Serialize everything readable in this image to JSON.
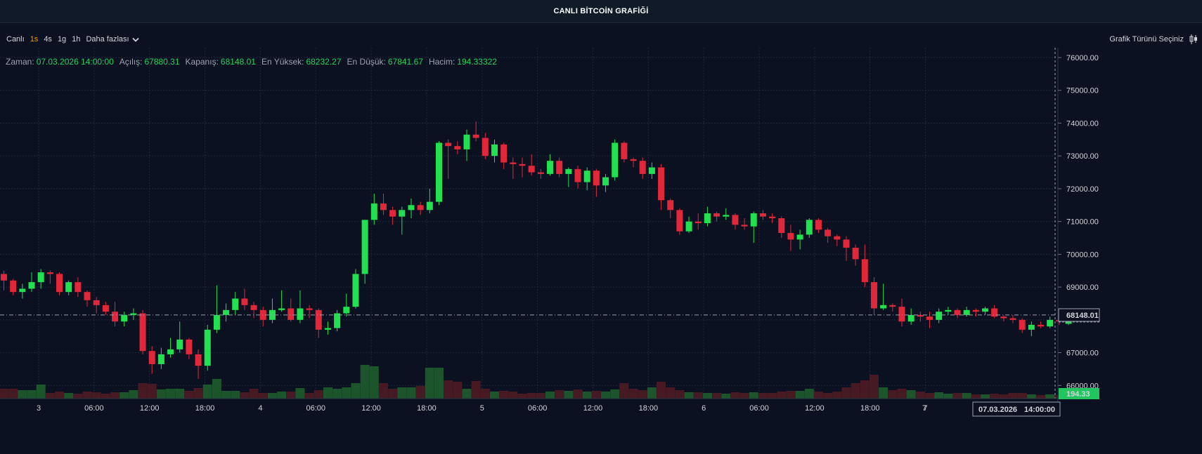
{
  "window": {
    "title": "CANLI BİTCOİN GRAFİĞİ"
  },
  "toolbar": {
    "live_label": "Canlı",
    "timeframes": [
      "1s",
      "4s",
      "1g",
      "1h"
    ],
    "active_timeframe": "1s",
    "more_label": "Daha fazlası",
    "chart_type_label": "Grafik Türünü Seçiniz"
  },
  "ohlc": {
    "time_label": "Zaman:",
    "time_value": "07.03.2026 14:00:00",
    "open_label": "Açılış:",
    "open_value": "67880.31",
    "close_label": "Kapanış:",
    "close_value": "68148.01",
    "high_label": "En Yüksek:",
    "high_value": "68232.27",
    "low_label": "En Düşük:",
    "low_value": "67841.67",
    "volume_label": "Hacim:",
    "volume_value": "194.33322"
  },
  "price_axis": {
    "ticks": [
      "76000.00",
      "75000.00",
      "74000.00",
      "73000.00",
      "72000.00",
      "71000.00",
      "70000.00",
      "69000.00",
      "67000.00",
      "66000.00"
    ],
    "current_price_label": "68148.01",
    "volume_label": "194.33"
  },
  "time_axis": {
    "labels": [
      "3",
      "06:00",
      "12:00",
      "18:00",
      "4",
      "06:00",
      "12:00",
      "18:00",
      "5",
      "06:00",
      "12:00",
      "18:00",
      "6",
      "06:00",
      "12:00",
      "18:00",
      "7"
    ],
    "crosshair_date": "07.03.2026",
    "crosshair_time": "14:00:00"
  },
  "colors": {
    "up": "#22e04f",
    "down": "#e0283a",
    "background": "#0b1120",
    "grid": "#1c2a3d",
    "accent": "#f59e0b",
    "text": "#d1d5db"
  },
  "chart_data": {
    "type": "candlestick",
    "ylim": [
      65600,
      76300
    ],
    "candles": [
      {
        "o": 69400,
        "c": 69200,
        "h": 69500,
        "l": 68900,
        "v": 14
      },
      {
        "o": 69200,
        "c": 68850,
        "h": 69250,
        "l": 68750,
        "v": 14
      },
      {
        "o": 68850,
        "c": 68950,
        "h": 69100,
        "l": 68650,
        "v": 12
      },
      {
        "o": 68950,
        "c": 69150,
        "h": 69450,
        "l": 68850,
        "v": 12
      },
      {
        "o": 69150,
        "c": 69450,
        "h": 69550,
        "l": 68950,
        "v": 20
      },
      {
        "o": 69450,
        "c": 69400,
        "h": 69500,
        "l": 69100,
        "v": 8
      },
      {
        "o": 69400,
        "c": 68850,
        "h": 69450,
        "l": 68750,
        "v": 10
      },
      {
        "o": 68850,
        "c": 69150,
        "h": 69200,
        "l": 68750,
        "v": 8
      },
      {
        "o": 69150,
        "c": 68850,
        "h": 69300,
        "l": 68700,
        "v": 7
      },
      {
        "o": 68850,
        "c": 68600,
        "h": 68900,
        "l": 68400,
        "v": 10
      },
      {
        "o": 68600,
        "c": 68450,
        "h": 68700,
        "l": 68200,
        "v": 9
      },
      {
        "o": 68450,
        "c": 68250,
        "h": 68550,
        "l": 68150,
        "v": 7
      },
      {
        "o": 68250,
        "c": 67950,
        "h": 68550,
        "l": 67800,
        "v": 9
      },
      {
        "o": 67950,
        "c": 68150,
        "h": 68250,
        "l": 67800,
        "v": 9
      },
      {
        "o": 68150,
        "c": 68200,
        "h": 68350,
        "l": 68000,
        "v": 12
      },
      {
        "o": 68200,
        "c": 67050,
        "h": 68300,
        "l": 66950,
        "v": 22
      },
      {
        "o": 67050,
        "c": 66650,
        "h": 67200,
        "l": 66350,
        "v": 21
      },
      {
        "o": 66650,
        "c": 66950,
        "h": 67150,
        "l": 66500,
        "v": 13
      },
      {
        "o": 66950,
        "c": 67100,
        "h": 67450,
        "l": 66850,
        "v": 14
      },
      {
        "o": 67100,
        "c": 67400,
        "h": 67950,
        "l": 67000,
        "v": 14
      },
      {
        "o": 67400,
        "c": 66950,
        "h": 67450,
        "l": 66800,
        "v": 11
      },
      {
        "o": 66950,
        "c": 66600,
        "h": 67100,
        "l": 66200,
        "v": 15
      },
      {
        "o": 66600,
        "c": 67700,
        "h": 67850,
        "l": 66450,
        "v": 20
      },
      {
        "o": 67700,
        "c": 68150,
        "h": 69050,
        "l": 67600,
        "v": 28
      },
      {
        "o": 68150,
        "c": 68300,
        "h": 68500,
        "l": 67950,
        "v": 11
      },
      {
        "o": 68300,
        "c": 68650,
        "h": 68850,
        "l": 68150,
        "v": 11
      },
      {
        "o": 68650,
        "c": 68450,
        "h": 68950,
        "l": 68300,
        "v": 9
      },
      {
        "o": 68450,
        "c": 68300,
        "h": 68550,
        "l": 68050,
        "v": 14
      },
      {
        "o": 68300,
        "c": 68000,
        "h": 68400,
        "l": 67800,
        "v": 8
      },
      {
        "o": 68000,
        "c": 68300,
        "h": 68650,
        "l": 67900,
        "v": 8
      },
      {
        "o": 68300,
        "c": 68350,
        "h": 68900,
        "l": 68250,
        "v": 10
      },
      {
        "o": 68350,
        "c": 68000,
        "h": 68650,
        "l": 67950,
        "v": 10
      },
      {
        "o": 68000,
        "c": 68350,
        "h": 68900,
        "l": 67900,
        "v": 15
      },
      {
        "o": 68350,
        "c": 68300,
        "h": 68450,
        "l": 68050,
        "v": 8
      },
      {
        "o": 68300,
        "c": 67700,
        "h": 68350,
        "l": 67450,
        "v": 12
      },
      {
        "o": 67700,
        "c": 67750,
        "h": 67950,
        "l": 67550,
        "v": 16
      },
      {
        "o": 67750,
        "c": 68200,
        "h": 68300,
        "l": 67650,
        "v": 14
      },
      {
        "o": 68200,
        "c": 68400,
        "h": 68800,
        "l": 68100,
        "v": 16
      },
      {
        "o": 68400,
        "c": 69400,
        "h": 69550,
        "l": 68350,
        "v": 22
      },
      {
        "o": 69400,
        "c": 71050,
        "h": 71050,
        "l": 69100,
        "v": 48
      },
      {
        "o": 71050,
        "c": 71550,
        "h": 71850,
        "l": 70900,
        "v": 46
      },
      {
        "o": 71550,
        "c": 71350,
        "h": 71850,
        "l": 71200,
        "v": 22
      },
      {
        "o": 71350,
        "c": 71150,
        "h": 71450,
        "l": 70900,
        "v": 14
      },
      {
        "o": 71150,
        "c": 71350,
        "h": 71450,
        "l": 70600,
        "v": 16
      },
      {
        "o": 71350,
        "c": 71500,
        "h": 71700,
        "l": 71100,
        "v": 16
      },
      {
        "o": 71500,
        "c": 71350,
        "h": 71600,
        "l": 71200,
        "v": 18
      },
      {
        "o": 71350,
        "c": 71600,
        "h": 72000,
        "l": 71250,
        "v": 44
      },
      {
        "o": 71600,
        "c": 73400,
        "h": 73450,
        "l": 71500,
        "v": 44
      },
      {
        "o": 73400,
        "c": 73300,
        "h": 73500,
        "l": 72300,
        "v": 26
      },
      {
        "o": 73300,
        "c": 73200,
        "h": 73450,
        "l": 73050,
        "v": 24
      },
      {
        "o": 73200,
        "c": 73650,
        "h": 73800,
        "l": 72850,
        "v": 14
      },
      {
        "o": 73650,
        "c": 73550,
        "h": 74050,
        "l": 73450,
        "v": 25
      },
      {
        "o": 73550,
        "c": 73000,
        "h": 73700,
        "l": 72900,
        "v": 14
      },
      {
        "o": 73000,
        "c": 73350,
        "h": 73500,
        "l": 72800,
        "v": 10
      },
      {
        "o": 73350,
        "c": 72800,
        "h": 73400,
        "l": 72600,
        "v": 11
      },
      {
        "o": 72800,
        "c": 72750,
        "h": 72950,
        "l": 72300,
        "v": 10
      },
      {
        "o": 72750,
        "c": 72700,
        "h": 72950,
        "l": 72350,
        "v": 7
      },
      {
        "o": 72700,
        "c": 72500,
        "h": 73050,
        "l": 72400,
        "v": 8
      },
      {
        "o": 72500,
        "c": 72450,
        "h": 72600,
        "l": 72300,
        "v": 8
      },
      {
        "o": 72450,
        "c": 72850,
        "h": 73050,
        "l": 72400,
        "v": 10
      },
      {
        "o": 72850,
        "c": 72450,
        "h": 72950,
        "l": 72350,
        "v": 12
      },
      {
        "o": 72450,
        "c": 72600,
        "h": 72650,
        "l": 72050,
        "v": 11
      },
      {
        "o": 72600,
        "c": 72200,
        "h": 72700,
        "l": 72000,
        "v": 13
      },
      {
        "o": 72200,
        "c": 72550,
        "h": 72650,
        "l": 71950,
        "v": 10
      },
      {
        "o": 72550,
        "c": 72100,
        "h": 72600,
        "l": 71750,
        "v": 11
      },
      {
        "o": 72100,
        "c": 72350,
        "h": 72450,
        "l": 71900,
        "v": 10
      },
      {
        "o": 72350,
        "c": 73400,
        "h": 73500,
        "l": 72250,
        "v": 13
      },
      {
        "o": 73400,
        "c": 72900,
        "h": 73450,
        "l": 72800,
        "v": 22
      },
      {
        "o": 72900,
        "c": 72850,
        "h": 72950,
        "l": 72650,
        "v": 14
      },
      {
        "o": 72850,
        "c": 72450,
        "h": 72950,
        "l": 72300,
        "v": 12
      },
      {
        "o": 72450,
        "c": 72650,
        "h": 72800,
        "l": 72300,
        "v": 16
      },
      {
        "o": 72650,
        "c": 71650,
        "h": 72750,
        "l": 71350,
        "v": 24
      },
      {
        "o": 71650,
        "c": 71350,
        "h": 71700,
        "l": 71100,
        "v": 16
      },
      {
        "o": 71350,
        "c": 70700,
        "h": 71400,
        "l": 70600,
        "v": 12
      },
      {
        "o": 70700,
        "c": 71000,
        "h": 71150,
        "l": 70650,
        "v": 9
      },
      {
        "o": 71000,
        "c": 70950,
        "h": 71250,
        "l": 70750,
        "v": 9
      },
      {
        "o": 70950,
        "c": 71250,
        "h": 71450,
        "l": 70850,
        "v": 8
      },
      {
        "o": 71250,
        "c": 71150,
        "h": 71300,
        "l": 71000,
        "v": 8
      },
      {
        "o": 71150,
        "c": 71200,
        "h": 71400,
        "l": 71050,
        "v": 7
      },
      {
        "o": 71200,
        "c": 70900,
        "h": 71250,
        "l": 70750,
        "v": 9
      },
      {
        "o": 70900,
        "c": 70850,
        "h": 71100,
        "l": 70750,
        "v": 8
      },
      {
        "o": 70850,
        "c": 71250,
        "h": 71300,
        "l": 70350,
        "v": 9
      },
      {
        "o": 71250,
        "c": 71150,
        "h": 71350,
        "l": 71050,
        "v": 8
      },
      {
        "o": 71150,
        "c": 71100,
        "h": 71250,
        "l": 70950,
        "v": 8
      },
      {
        "o": 71100,
        "c": 70650,
        "h": 71150,
        "l": 70500,
        "v": 10
      },
      {
        "o": 70650,
        "c": 70450,
        "h": 70900,
        "l": 70100,
        "v": 11
      },
      {
        "o": 70450,
        "c": 70600,
        "h": 70750,
        "l": 70150,
        "v": 11
      },
      {
        "o": 70600,
        "c": 71050,
        "h": 71100,
        "l": 70500,
        "v": 14
      },
      {
        "o": 71050,
        "c": 70750,
        "h": 71100,
        "l": 70650,
        "v": 10
      },
      {
        "o": 70750,
        "c": 70550,
        "h": 70800,
        "l": 70350,
        "v": 8
      },
      {
        "o": 70550,
        "c": 70450,
        "h": 70600,
        "l": 70250,
        "v": 10
      },
      {
        "o": 70450,
        "c": 70200,
        "h": 70550,
        "l": 69800,
        "v": 16
      },
      {
        "o": 70200,
        "c": 69850,
        "h": 70300,
        "l": 69650,
        "v": 22
      },
      {
        "o": 69850,
        "c": 69150,
        "h": 70300,
        "l": 69000,
        "v": 26
      },
      {
        "o": 69150,
        "c": 68350,
        "h": 69300,
        "l": 68150,
        "v": 34
      },
      {
        "o": 68350,
        "c": 68450,
        "h": 69100,
        "l": 68300,
        "v": 16
      },
      {
        "o": 68450,
        "c": 68400,
        "h": 68500,
        "l": 68250,
        "v": 12
      },
      {
        "o": 68400,
        "c": 67950,
        "h": 68650,
        "l": 67800,
        "v": 14
      },
      {
        "o": 67950,
        "c": 68150,
        "h": 68350,
        "l": 67850,
        "v": 12
      },
      {
        "o": 68150,
        "c": 68100,
        "h": 68250,
        "l": 67950,
        "v": 10
      },
      {
        "o": 68100,
        "c": 68000,
        "h": 68250,
        "l": 67750,
        "v": 8
      },
      {
        "o": 68000,
        "c": 68250,
        "h": 68350,
        "l": 67900,
        "v": 9
      },
      {
        "o": 68250,
        "c": 68300,
        "h": 68400,
        "l": 68150,
        "v": 7
      },
      {
        "o": 68300,
        "c": 68150,
        "h": 68350,
        "l": 68050,
        "v": 8
      },
      {
        "o": 68150,
        "c": 68300,
        "h": 68400,
        "l": 68100,
        "v": 8
      },
      {
        "o": 68300,
        "c": 68250,
        "h": 68350,
        "l": 68100,
        "v": 6
      },
      {
        "o": 68250,
        "c": 68350,
        "h": 68400,
        "l": 68150,
        "v": 6
      },
      {
        "o": 68350,
        "c": 68100,
        "h": 68450,
        "l": 68050,
        "v": 7
      },
      {
        "o": 68100,
        "c": 68050,
        "h": 68150,
        "l": 67950,
        "v": 6
      },
      {
        "o": 68050,
        "c": 68000,
        "h": 68150,
        "l": 67900,
        "v": 8
      },
      {
        "o": 68000,
        "c": 67700,
        "h": 68050,
        "l": 67600,
        "v": 8
      },
      {
        "o": 67700,
        "c": 67850,
        "h": 67950,
        "l": 67500,
        "v": 6
      },
      {
        "o": 67850,
        "c": 67800,
        "h": 67950,
        "l": 67750,
        "v": 5
      },
      {
        "o": 67800,
        "c": 68000,
        "h": 68100,
        "l": 67750,
        "v": 6
      },
      {
        "o": 68000,
        "c": 67950,
        "h": 68050,
        "l": 67850,
        "v": 5
      },
      {
        "o": 67880.31,
        "c": 68148.01,
        "h": 68232.27,
        "l": 67841.67,
        "v": 12
      }
    ]
  }
}
